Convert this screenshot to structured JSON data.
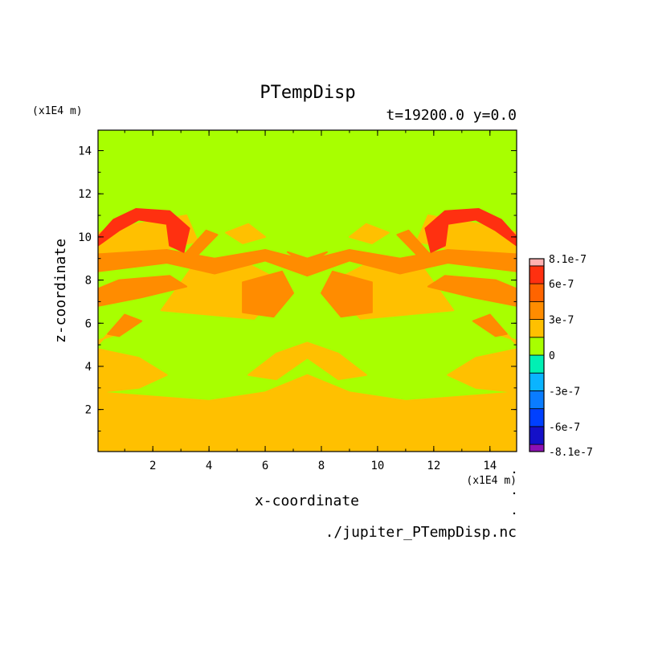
{
  "chart_data": {
    "type": "heatmap",
    "title": "PTempDisp",
    "subtitle": "t=19200.0 y=0.0",
    "xlabel": "x-coordinate",
    "ylabel": "z-coordinate",
    "x_unit": "(x1E4 m)",
    "y_unit": "(x1E4 m)",
    "footer": "./jupiter_PTempDisp.nc",
    "xlim": [
      0.05,
      14.95
    ],
    "ylim": [
      0.05,
      14.95
    ],
    "xticks": [
      2,
      4,
      6,
      8,
      10,
      12,
      14
    ],
    "yticks": [
      2,
      4,
      6,
      8,
      10,
      12,
      14
    ],
    "colorbar": {
      "labels": [
        "8.1e-7",
        "6e-7",
        "3e-7",
        "0",
        "-3e-7",
        "-6e-7",
        "-8.1e-7"
      ],
      "levels": [
        {
          "from": -8.1e-07,
          "to": -7.5e-07,
          "color": "#8c10b4"
        },
        {
          "from": -7.5e-07,
          "to": -6e-07,
          "color": "#1410c8"
        },
        {
          "from": -6e-07,
          "to": -4.5e-07,
          "color": "#0040ff"
        },
        {
          "from": -4.5e-07,
          "to": -3e-07,
          "color": "#0a7cff"
        },
        {
          "from": -3e-07,
          "to": -1.5e-07,
          "color": "#0ab4ff"
        },
        {
          "from": -1.5e-07,
          "to": 0,
          "color": "#00f0b4"
        },
        {
          "from": 0,
          "to": 1.5e-07,
          "color": "#a8ff00"
        },
        {
          "from": 1.5e-07,
          "to": 3e-07,
          "color": "#ffc000"
        },
        {
          "from": 3e-07,
          "to": 4.5e-07,
          "color": "#ff8c00"
        },
        {
          "from": 4.5e-07,
          "to": 6e-07,
          "color": "#ff6400"
        },
        {
          "from": 6e-07,
          "to": 7.5e-07,
          "color": "#ff3010"
        },
        {
          "from": 7.5e-07,
          "to": 8.1e-07,
          "color": "#ffb0b0"
        }
      ]
    },
    "field_regions": [
      {
        "level": 1.5e-07,
        "poly": [
          [
            0.05,
            0.05
          ],
          [
            14.95,
            0.05
          ],
          [
            14.95,
            2.8
          ],
          [
            13,
            2.6
          ],
          [
            11,
            2.4
          ],
          [
            9,
            2.8
          ],
          [
            7.5,
            3.6
          ],
          [
            6,
            2.8
          ],
          [
            4,
            2.4
          ],
          [
            2,
            2.6
          ],
          [
            0.05,
            2.8
          ]
        ]
      },
      {
        "level": 1.5e-07,
        "poly": [
          [
            0.05,
            2.8
          ],
          [
            1.5,
            3.0
          ],
          [
            2.5,
            3.6
          ],
          [
            1.5,
            4.4
          ],
          [
            0.05,
            4.8
          ]
        ]
      },
      {
        "level": 1.5e-07,
        "poly": [
          [
            14.95,
            2.8
          ],
          [
            13.5,
            3.0
          ],
          [
            12.5,
            3.6
          ],
          [
            13.5,
            4.4
          ],
          [
            14.95,
            4.8
          ]
        ]
      },
      {
        "level": 1.5e-07,
        "poly": [
          [
            5.4,
            3.6
          ],
          [
            6.4,
            3.4
          ],
          [
            7.5,
            4.4
          ],
          [
            8.6,
            3.4
          ],
          [
            9.6,
            3.6
          ],
          [
            8.6,
            4.6
          ],
          [
            7.5,
            5.1
          ],
          [
            6.4,
            4.6
          ]
        ]
      },
      {
        "level": 1.5e-07,
        "poly": [
          [
            2.3,
            6.6
          ],
          [
            5.6,
            6.2
          ],
          [
            6.8,
            7.8
          ],
          [
            5.0,
            9.0
          ],
          [
            3.4,
            8.6
          ]
        ]
      },
      {
        "level": 1.5e-07,
        "poly": [
          [
            12.7,
            6.6
          ],
          [
            9.4,
            6.2
          ],
          [
            8.2,
            7.8
          ],
          [
            10.0,
            9.0
          ],
          [
            11.6,
            8.6
          ]
        ]
      },
      {
        "level": 1.5e-07,
        "poly": [
          [
            0.05,
            9.0
          ],
          [
            2.0,
            9.3
          ],
          [
            3.6,
            9.8
          ],
          [
            3.2,
            11.0
          ],
          [
            1.4,
            10.6
          ],
          [
            0.05,
            10.2
          ]
        ]
      },
      {
        "level": 1.5e-07,
        "poly": [
          [
            14.95,
            9.0
          ],
          [
            13.0,
            9.3
          ],
          [
            11.4,
            9.8
          ],
          [
            11.8,
            11.0
          ],
          [
            13.6,
            10.6
          ],
          [
            14.95,
            10.2
          ]
        ]
      },
      {
        "level": 1.5e-07,
        "poly": [
          [
            4.6,
            10.2
          ],
          [
            5.4,
            10.6
          ],
          [
            6.0,
            10.0
          ],
          [
            5.2,
            9.7
          ]
        ]
      },
      {
        "level": 1.5e-07,
        "poly": [
          [
            10.4,
            10.2
          ],
          [
            9.6,
            10.6
          ],
          [
            9.0,
            10.0
          ],
          [
            9.8,
            9.7
          ]
        ]
      },
      {
        "level": 1.5e-07,
        "poly": [
          [
            0.05,
            5.0
          ],
          [
            0.6,
            5.8
          ],
          [
            1.0,
            5.6
          ],
          [
            0.05,
            5.2
          ]
        ]
      },
      {
        "level": 1.5e-07,
        "poly": [
          [
            14.95,
            5.0
          ],
          [
            14.4,
            5.8
          ],
          [
            14.0,
            5.6
          ],
          [
            14.95,
            5.2
          ]
        ]
      },
      {
        "level": 3e-07,
        "poly": [
          [
            0.05,
            8.4
          ],
          [
            2.5,
            8.8
          ],
          [
            4.2,
            8.3
          ],
          [
            6.0,
            8.9
          ],
          [
            7.5,
            8.2
          ],
          [
            9.0,
            8.9
          ],
          [
            10.8,
            8.3
          ],
          [
            12.5,
            8.8
          ],
          [
            14.95,
            8.4
          ],
          [
            14.95,
            9.2
          ],
          [
            12.5,
            9.4
          ],
          [
            10.8,
            9.0
          ],
          [
            9.0,
            9.4
          ],
          [
            7.5,
            8.9
          ],
          [
            6.0,
            9.4
          ],
          [
            4.2,
            9.0
          ],
          [
            2.5,
            9.4
          ],
          [
            0.05,
            9.2
          ]
        ]
      },
      {
        "level": 3e-07,
        "poly": [
          [
            5.2,
            6.5
          ],
          [
            6.3,
            6.3
          ],
          [
            7.0,
            7.4
          ],
          [
            6.6,
            8.4
          ],
          [
            5.2,
            7.9
          ]
        ]
      },
      {
        "level": 3e-07,
        "poly": [
          [
            9.8,
            6.5
          ],
          [
            8.7,
            6.3
          ],
          [
            8.0,
            7.4
          ],
          [
            8.4,
            8.4
          ],
          [
            9.8,
            7.9
          ]
        ]
      },
      {
        "level": 3e-07,
        "poly": [
          [
            0.05,
            6.8
          ],
          [
            1.6,
            7.2
          ],
          [
            3.2,
            7.7
          ],
          [
            2.6,
            8.2
          ],
          [
            0.8,
            8.0
          ],
          [
            0.05,
            7.6
          ]
        ]
      },
      {
        "level": 3e-07,
        "poly": [
          [
            14.95,
            6.8
          ],
          [
            13.4,
            7.2
          ],
          [
            11.8,
            7.7
          ],
          [
            12.4,
            8.2
          ],
          [
            14.2,
            8.0
          ],
          [
            14.95,
            7.6
          ]
        ]
      },
      {
        "level": 3e-07,
        "poly": [
          [
            0.4,
            5.5
          ],
          [
            1.0,
            6.4
          ],
          [
            1.6,
            6.1
          ],
          [
            0.8,
            5.4
          ]
        ]
      },
      {
        "level": 3e-07,
        "poly": [
          [
            14.6,
            5.5
          ],
          [
            14.0,
            6.4
          ],
          [
            13.4,
            6.1
          ],
          [
            14.2,
            5.4
          ]
        ]
      },
      {
        "level": 3e-07,
        "poly": [
          [
            6.8,
            9.3
          ],
          [
            7.5,
            8.6
          ],
          [
            8.2,
            9.3
          ],
          [
            7.5,
            9.0
          ]
        ]
      },
      {
        "level": 3e-07,
        "poly": [
          [
            3.0,
            9.0
          ],
          [
            3.9,
            10.3
          ],
          [
            4.3,
            10.1
          ],
          [
            3.4,
            8.9
          ]
        ]
      },
      {
        "level": 3e-07,
        "poly": [
          [
            12.0,
            9.0
          ],
          [
            11.1,
            10.3
          ],
          [
            10.7,
            10.1
          ],
          [
            11.6,
            8.9
          ]
        ]
      },
      {
        "level": 6e-07,
        "poly": [
          [
            0.05,
            10.0
          ],
          [
            0.6,
            10.8
          ],
          [
            1.4,
            11.3
          ],
          [
            2.6,
            11.2
          ],
          [
            3.3,
            10.4
          ],
          [
            3.1,
            9.3
          ],
          [
            2.6,
            9.6
          ],
          [
            2.5,
            10.6
          ],
          [
            1.5,
            10.8
          ],
          [
            0.8,
            10.3
          ],
          [
            0.05,
            9.6
          ]
        ]
      },
      {
        "level": 6e-07,
        "poly": [
          [
            14.95,
            10.0
          ],
          [
            14.4,
            10.8
          ],
          [
            13.6,
            11.3
          ],
          [
            12.4,
            11.2
          ],
          [
            11.7,
            10.4
          ],
          [
            11.9,
            9.3
          ],
          [
            12.4,
            9.6
          ],
          [
            12.5,
            10.6
          ],
          [
            13.5,
            10.8
          ],
          [
            14.2,
            10.3
          ],
          [
            14.95,
            9.6
          ]
        ]
      }
    ]
  }
}
